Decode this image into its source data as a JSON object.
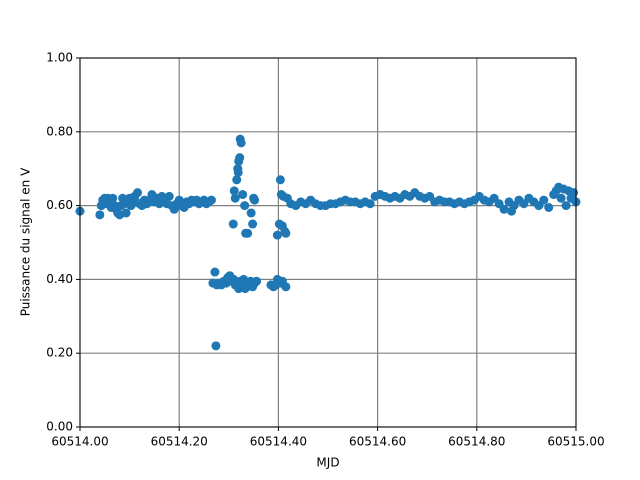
{
  "chart_data": {
    "type": "scatter",
    "x_label": "MJD",
    "y_label": "Puissance du signal en V",
    "color": "#1f77b4",
    "grid": true,
    "xlim": [
      60514,
      60515
    ],
    "xticks": [
      {
        "value": 60514,
        "label": "60514.00"
      },
      {
        "value": 60514.2,
        "label": "60514.20"
      },
      {
        "value": 60514.4,
        "label": "60514.40"
      },
      {
        "value": 60514.6,
        "label": "60514.60"
      },
      {
        "value": 60514.8,
        "label": "60514.80"
      },
      {
        "value": 60515,
        "label": "60515.00"
      }
    ],
    "ylim": [
      0,
      1
    ],
    "yticks": [
      {
        "value": 0,
        "label": "0.00"
      },
      {
        "value": 0.2,
        "label": "0.20"
      },
      {
        "value": 0.4,
        "label": "0.40"
      },
      {
        "value": 0.6,
        "label": "0.60"
      },
      {
        "value": 0.8,
        "label": "0.80"
      },
      {
        "value": 1,
        "label": "1.00"
      }
    ],
    "x": [
      60514.0,
      60514.04,
      60514.043,
      60514.046,
      60514.05,
      60514.053,
      60514.056,
      60514.06,
      60514.063,
      60514.066,
      60514.07,
      60514.073,
      60514.076,
      60514.08,
      60514.083,
      60514.086,
      60514.09,
      60514.093,
      60514.096,
      60514.1,
      60514.103,
      60514.106,
      60514.11,
      60514.113,
      60514.116,
      60514.12,
      60514.125,
      60514.13,
      60514.135,
      60514.14,
      60514.145,
      60514.15,
      60514.155,
      60514.16,
      60514.165,
      60514.17,
      60514.175,
      60514.18,
      60514.185,
      60514.19,
      60514.195,
      60514.2,
      60514.205,
      60514.21,
      60514.215,
      60514.22,
      60514.225,
      60514.23,
      60514.235,
      60514.24,
      60514.245,
      60514.25,
      60514.255,
      60514.26,
      60514.265,
      60514.268,
      60514.272,
      60514.274,
      60514.276,
      60514.28,
      60514.285,
      60514.29,
      60514.295,
      60514.298,
      60514.302,
      60514.306,
      60514.31,
      60514.313,
      60514.316,
      60514.32,
      60514.323,
      60514.326,
      60514.33,
      60514.333,
      60514.336,
      60514.34,
      60514.344,
      60514.348,
      60514.352,
      60514.356,
      60514.309,
      60514.311,
      60514.313,
      60514.316,
      60514.318,
      60514.319,
      60514.32,
      60514.322,
      60514.323,
      60514.325,
      60514.328,
      60514.332,
      60514.334,
      60514.338,
      60514.345,
      60514.348,
      60514.35,
      60514.352,
      60514.385,
      60514.39,
      60514.395,
      60514.398,
      60514.402,
      60514.405,
      60514.408,
      60514.415,
      60514.398,
      60514.402,
      60514.404,
      60514.406,
      60514.408,
      60514.41,
      60514.413,
      60514.415,
      60514.418,
      60514.425,
      60514.435,
      60514.445,
      60514.455,
      60514.465,
      60514.475,
      60514.485,
      60514.495,
      60514.505,
      60514.515,
      60514.525,
      60514.535,
      60514.545,
      60514.555,
      60514.565,
      60514.575,
      60514.585,
      60514.595,
      60514.605,
      60514.615,
      60514.625,
      60514.635,
      60514.645,
      60514.655,
      60514.665,
      60514.675,
      60514.685,
      60514.695,
      60514.705,
      60514.715,
      60514.725,
      60514.735,
      60514.745,
      60514.755,
      60514.765,
      60514.775,
      60514.785,
      60514.795,
      60514.805,
      60514.815,
      60514.825,
      60514.835,
      60514.845,
      60514.855,
      60514.865,
      60514.87,
      60514.875,
      60514.885,
      60514.895,
      60514.905,
      60514.915,
      60514.925,
      60514.935,
      60514.945,
      60514.955,
      60514.96,
      60514.965,
      60514.97,
      60514.975,
      60514.98,
      60514.985,
      60514.99,
      60514.995,
      60515.0
    ],
    "values": [
      0.585,
      0.575,
      0.6,
      0.615,
      0.62,
      0.605,
      0.62,
      0.61,
      0.595,
      0.62,
      0.6,
      0.59,
      0.58,
      0.575,
      0.6,
      0.62,
      0.605,
      0.58,
      0.61,
      0.62,
      0.6,
      0.615,
      0.625,
      0.61,
      0.635,
      0.605,
      0.6,
      0.615,
      0.605,
      0.615,
      0.63,
      0.61,
      0.62,
      0.605,
      0.625,
      0.615,
      0.605,
      0.625,
      0.6,
      0.59,
      0.605,
      0.615,
      0.6,
      0.595,
      0.61,
      0.605,
      0.615,
      0.61,
      0.615,
      0.605,
      0.61,
      0.615,
      0.605,
      0.61,
      0.615,
      0.39,
      0.42,
      0.22,
      0.385,
      0.39,
      0.385,
      0.395,
      0.39,
      0.405,
      0.41,
      0.395,
      0.4,
      0.385,
      0.39,
      0.375,
      0.395,
      0.38,
      0.4,
      0.375,
      0.39,
      0.385,
      0.395,
      0.38,
      0.39,
      0.395,
      0.55,
      0.64,
      0.62,
      0.67,
      0.7,
      0.69,
      0.72,
      0.73,
      0.78,
      0.77,
      0.63,
      0.6,
      0.525,
      0.525,
      0.58,
      0.55,
      0.62,
      0.615,
      0.385,
      0.38,
      0.385,
      0.4,
      0.395,
      0.39,
      0.395,
      0.38,
      0.52,
      0.55,
      0.67,
      0.63,
      0.545,
      0.625,
      0.53,
      0.525,
      0.62,
      0.605,
      0.6,
      0.61,
      0.605,
      0.615,
      0.605,
      0.6,
      0.6,
      0.605,
      0.605,
      0.61,
      0.615,
      0.61,
      0.61,
      0.605,
      0.61,
      0.605,
      0.625,
      0.63,
      0.625,
      0.62,
      0.625,
      0.62,
      0.63,
      0.625,
      0.635,
      0.625,
      0.62,
      0.625,
      0.61,
      0.615,
      0.61,
      0.61,
      0.605,
      0.61,
      0.605,
      0.61,
      0.615,
      0.625,
      0.615,
      0.61,
      0.62,
      0.605,
      0.59,
      0.61,
      0.585,
      0.6,
      0.615,
      0.605,
      0.62,
      0.61,
      0.6,
      0.615,
      0.595,
      0.63,
      0.64,
      0.65,
      0.62,
      0.645,
      0.6,
      0.64,
      0.62,
      0.635,
      0.61
    ]
  }
}
